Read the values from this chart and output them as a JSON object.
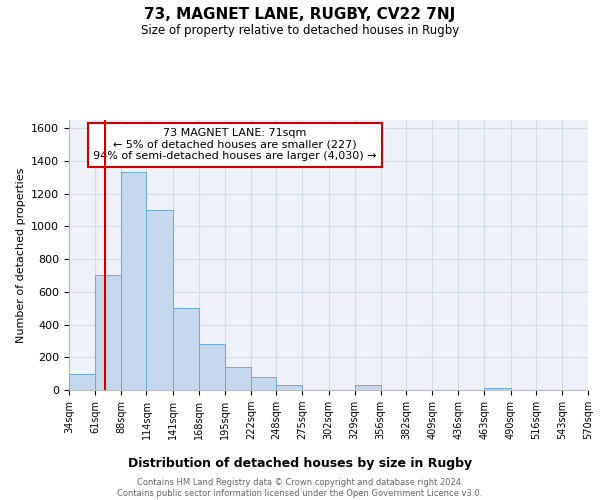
{
  "title": "73, MAGNET LANE, RUGBY, CV22 7NJ",
  "subtitle": "Size of property relative to detached houses in Rugby",
  "xlabel": "Distribution of detached houses by size in Rugby",
  "ylabel": "Number of detached properties",
  "bar_color": "#c5d8ed",
  "bar_edge_color": "#6aaad4",
  "bin_edges": [
    34,
    61,
    88,
    114,
    141,
    168,
    195,
    222,
    248,
    275,
    302,
    329,
    356,
    382,
    409,
    436,
    463,
    490,
    516,
    543,
    570
  ],
  "bin_labels": [
    "34sqm",
    "61sqm",
    "88sqm",
    "114sqm",
    "141sqm",
    "168sqm",
    "195sqm",
    "222sqm",
    "248sqm",
    "275sqm",
    "302sqm",
    "329sqm",
    "356sqm",
    "382sqm",
    "409sqm",
    "436sqm",
    "463sqm",
    "490sqm",
    "516sqm",
    "543sqm",
    "570sqm"
  ],
  "bar_heights": [
    100,
    700,
    1330,
    1100,
    500,
    280,
    140,
    80,
    30,
    0,
    0,
    30,
    0,
    0,
    0,
    0,
    15,
    0,
    0,
    0,
    0
  ],
  "property_size": 71,
  "red_line_color": "#cc0000",
  "ylim": [
    0,
    1650
  ],
  "yticks": [
    0,
    200,
    400,
    600,
    800,
    1000,
    1200,
    1400,
    1600
  ],
  "annotation_text": "73 MAGNET LANE: 71sqm\n← 5% of detached houses are smaller (227)\n94% of semi-detached houses are larger (4,030) →",
  "annotation_box_color": "#ffffff",
  "annotation_box_edge_color": "#cc0000",
  "footer_text": "Contains HM Land Registry data © Crown copyright and database right 2024.\nContains public sector information licensed under the Open Government Licence v3.0.",
  "grid_color": "#d0dcea",
  "background_color": "#eef2f8"
}
